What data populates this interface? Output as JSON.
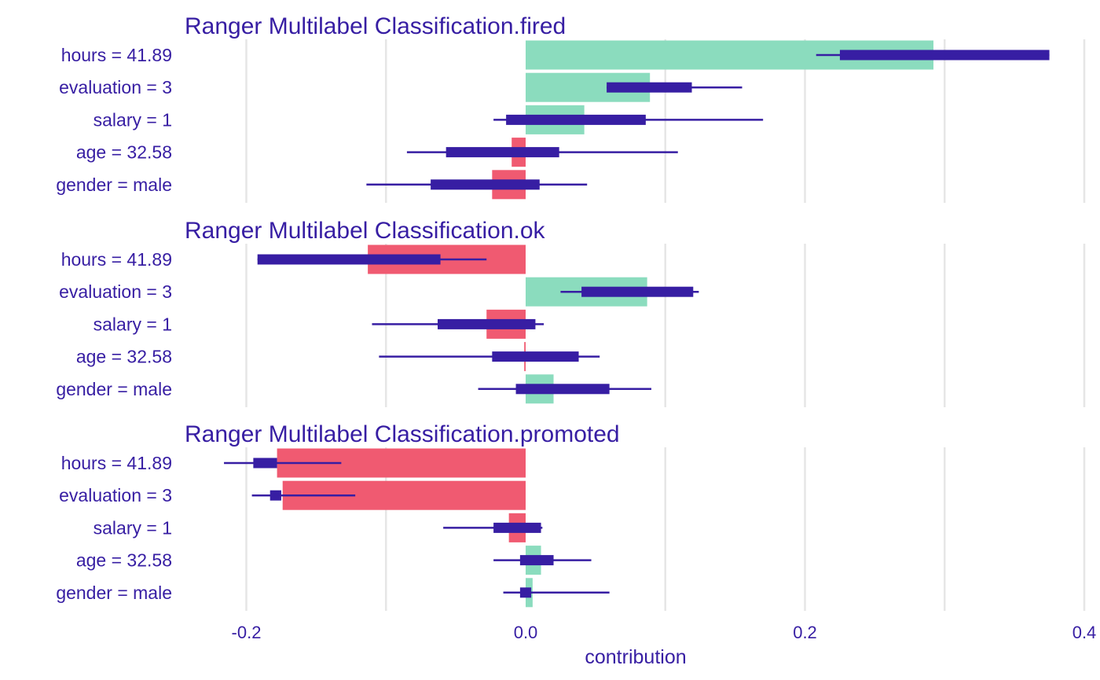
{
  "chart_data": {
    "type": "bar",
    "xlabel": "contribution",
    "xlim": [
      -0.2,
      0.4
    ],
    "xticks": [
      -0.2,
      0.0,
      0.2,
      0.4
    ],
    "xtick_labels": [
      "-0.2",
      "0.0",
      "0.2",
      "0.4"
    ],
    "grid": true,
    "colors": {
      "positive": "#8bdcbe",
      "negative": "#f05a71",
      "interval": "#371ea3",
      "text": "#371ea3",
      "grid": "#e6e6e6"
    },
    "categories": [
      "hours = 41.89",
      "evaluation = 3",
      "salary = 1",
      "age = 32.58",
      "gender = male"
    ],
    "panels": [
      {
        "title": "Ranger Multilabel Classification.fired",
        "values": [
          0.292,
          0.089,
          0.042,
          -0.01,
          -0.024
        ],
        "whisker_low": [
          0.208,
          0.058,
          -0.023,
          -0.085,
          -0.114
        ],
        "box_low": [
          0.225,
          0.058,
          -0.014,
          -0.057,
          -0.068
        ],
        "box_high": [
          0.375,
          0.119,
          0.086,
          0.024,
          0.01
        ],
        "whisker_high": [
          0.375,
          0.155,
          0.17,
          0.109,
          0.044
        ]
      },
      {
        "title": "Ranger Multilabel Classification.ok",
        "values": [
          -0.113,
          0.087,
          -0.028,
          -0.001,
          0.02
        ],
        "whisker_low": [
          -0.192,
          0.025,
          -0.11,
          -0.105,
          -0.034
        ],
        "box_low": [
          -0.192,
          0.04,
          -0.063,
          -0.024,
          -0.007
        ],
        "box_high": [
          -0.061,
          0.12,
          0.007,
          0.038,
          0.06
        ],
        "whisker_high": [
          -0.028,
          0.124,
          0.013,
          0.053,
          0.09
        ]
      },
      {
        "title": "Ranger Multilabel Classification.promoted",
        "values": [
          -0.178,
          -0.174,
          -0.012,
          0.011,
          0.005
        ],
        "whisker_low": [
          -0.216,
          -0.196,
          -0.059,
          -0.023,
          -0.016
        ],
        "box_low": [
          -0.195,
          -0.183,
          -0.023,
          -0.004,
          -0.004
        ],
        "box_high": [
          -0.178,
          -0.175,
          0.011,
          0.02,
          0.004
        ],
        "whisker_high": [
          -0.132,
          -0.122,
          0.012,
          0.047,
          0.06
        ]
      }
    ]
  }
}
